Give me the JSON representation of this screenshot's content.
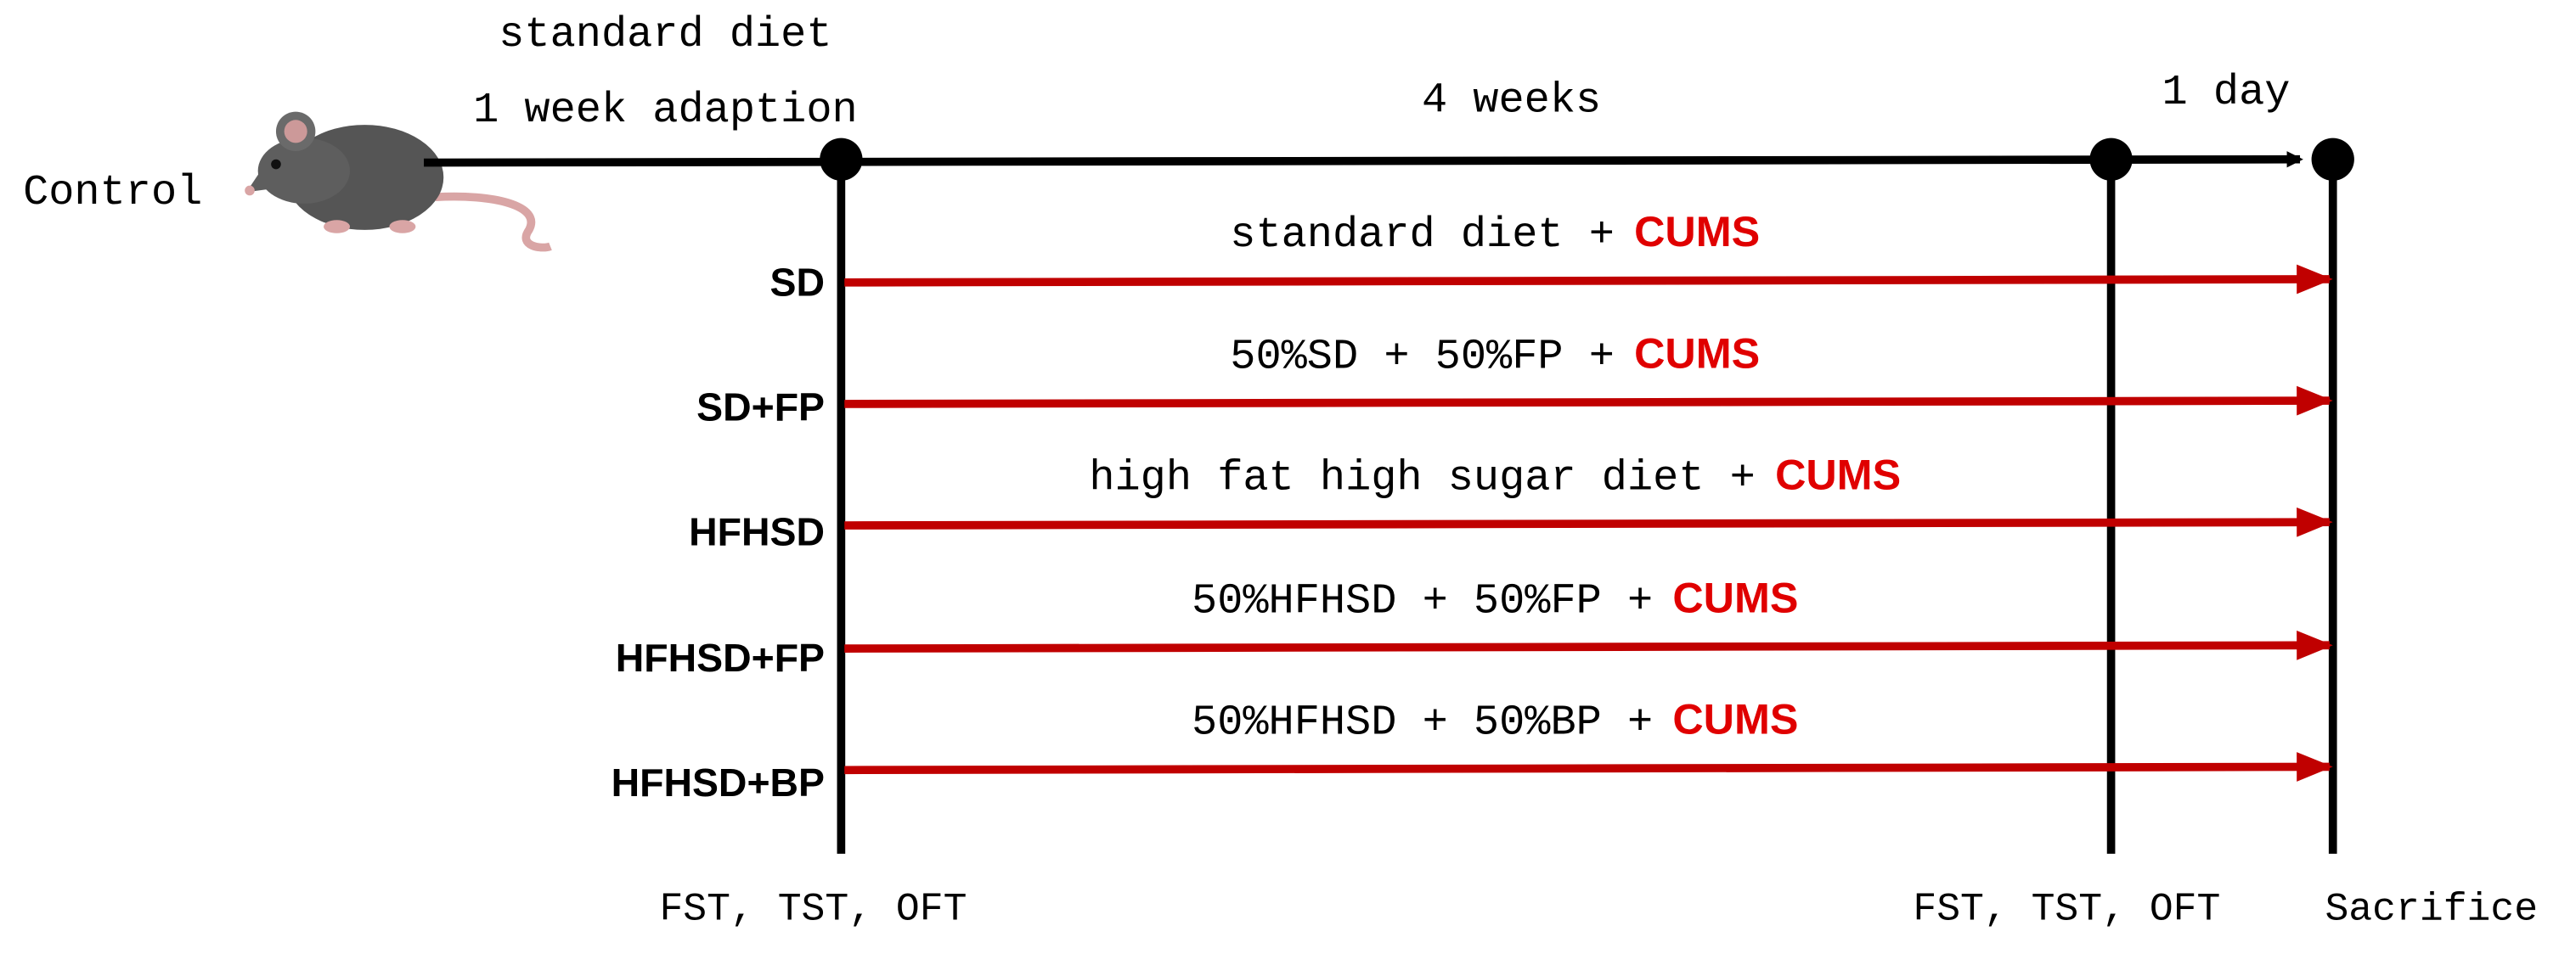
{
  "header": {
    "adaption_diet": "standard diet",
    "adaption_period": "1 week adaption",
    "treatment_period": "4 weeks",
    "final_period": "1 day"
  },
  "control_label": "Control",
  "groups": [
    {
      "label": "SD",
      "diet": "standard diet +",
      "stress": "CUMS"
    },
    {
      "label": "SD+FP",
      "diet": "50%SD + 50%FP +",
      "stress": "CUMS"
    },
    {
      "label": "HFHSD",
      "diet": "high fat high sugar diet +",
      "stress": "CUMS"
    },
    {
      "label": "HFHSD+FP",
      "diet": "50%HFHSD + 50%FP +",
      "stress": "CUMS"
    },
    {
      "label": "HFHSD+BP",
      "diet": "50%HFHSD + 50%BP +",
      "stress": "CUMS"
    }
  ],
  "timepoints": {
    "start_tests": "FST, TST, OFT",
    "end_tests": "FST, TST, OFT",
    "final": "Sacrifice"
  }
}
